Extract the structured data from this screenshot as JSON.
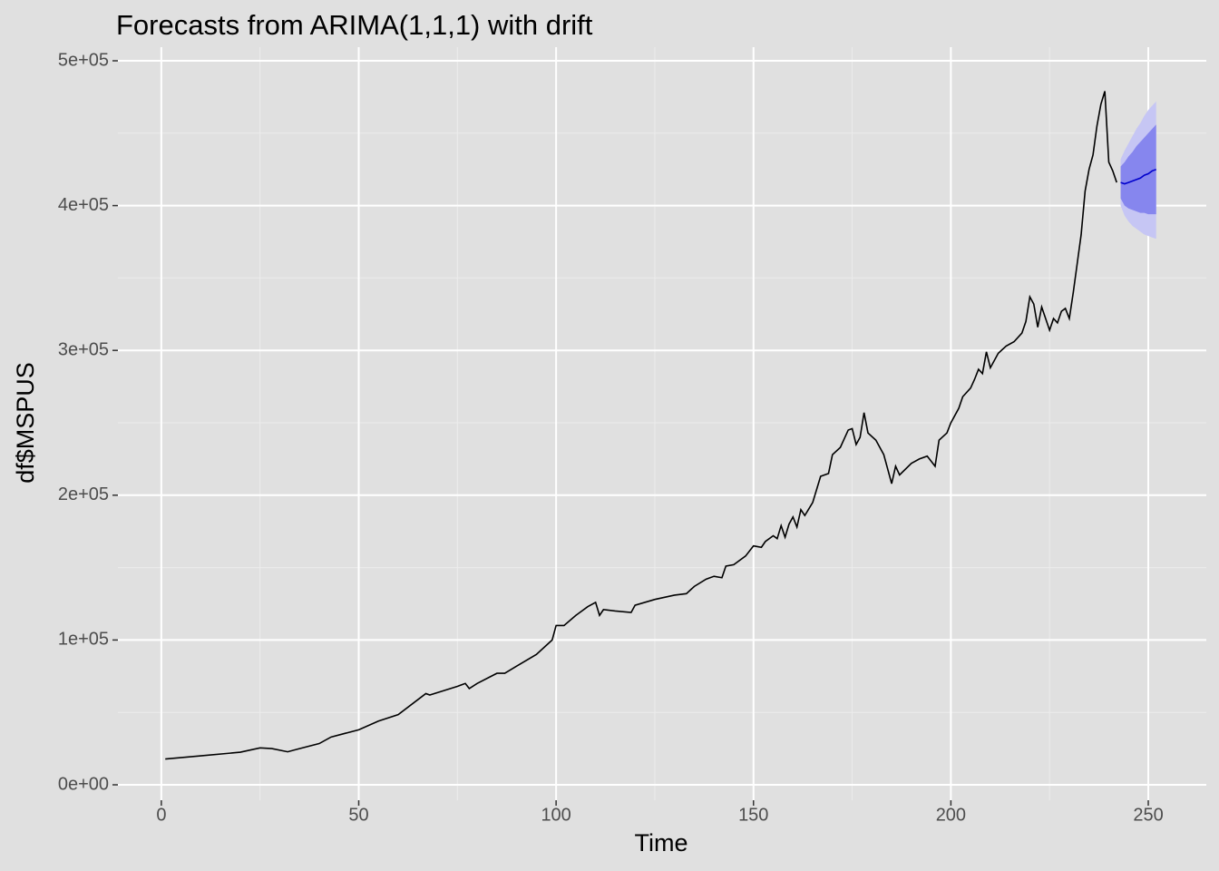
{
  "chart_data": {
    "type": "line",
    "title": "Forecasts from ARIMA(1,1,1) with drift",
    "xlabel": "Time",
    "ylabel": "df$MSPUS",
    "xlim": [
      -11,
      264.7
    ],
    "ylim": [
      -10650,
      509400
    ],
    "xticks": [
      0,
      50,
      100,
      150,
      200,
      250
    ],
    "x_minor_ticks": [
      25,
      75,
      125,
      175,
      225
    ],
    "yticks": [
      {
        "value": 0,
        "label": "0e+00"
      },
      {
        "value": 100000,
        "label": "1e+05"
      },
      {
        "value": 200000,
        "label": "2e+05"
      },
      {
        "value": 300000,
        "label": "3e+05"
      },
      {
        "value": 400000,
        "label": "4e+05"
      },
      {
        "value": 500000,
        "label": "5e+05"
      }
    ],
    "y_minor_ticks": [
      50000,
      150000,
      250000,
      350000,
      450000
    ],
    "grid": true,
    "color": "#000000",
    "x": [
      1,
      10,
      20,
      25,
      28,
      32,
      35,
      40,
      43,
      50,
      55,
      60,
      67,
      68,
      75,
      77,
      78,
      80,
      85,
      87,
      90,
      95,
      99,
      100,
      102,
      105,
      108,
      110,
      111,
      112,
      115,
      119,
      120,
      125,
      130,
      133,
      135,
      138,
      140,
      142,
      143,
      145,
      148,
      150,
      152,
      153,
      155,
      156,
      157,
      158,
      159,
      160,
      161,
      162,
      163,
      165,
      167,
      169,
      170,
      172,
      174,
      175,
      176,
      177,
      178,
      179,
      181,
      183,
      185,
      186,
      187,
      190,
      192,
      194,
      196,
      197,
      199,
      200,
      202,
      203,
      205,
      206,
      207,
      208,
      209,
      210,
      212,
      214,
      216,
      218,
      219,
      220,
      221,
      222,
      223,
      225,
      226,
      227,
      228,
      229,
      230,
      231,
      232,
      233,
      234,
      235,
      236,
      237,
      238,
      239,
      240,
      241,
      242
    ],
    "values": [
      17800,
      20000,
      22500,
      25500,
      25000,
      22800,
      25000,
      28500,
      33000,
      38000,
      44000,
      48500,
      63000,
      62000,
      68000,
      70000,
      66500,
      70000,
      77000,
      77000,
      82000,
      90000,
      100000,
      110000,
      110000,
      117000,
      123000,
      126000,
      117000,
      121000,
      120000,
      119000,
      124000,
      128000,
      131000,
      132000,
      137000,
      142000,
      144000,
      143000,
      151000,
      152000,
      158000,
      165000,
      164000,
      168000,
      172000,
      170000,
      179000,
      171000,
      180000,
      185000,
      178000,
      190000,
      186000,
      195000,
      213000,
      215000,
      228000,
      233000,
      245000,
      246000,
      235000,
      240000,
      257000,
      243000,
      238000,
      228000,
      208000,
      220000,
      214000,
      222000,
      225000,
      227000,
      220000,
      238000,
      243000,
      250000,
      260000,
      268000,
      274000,
      280000,
      287000,
      284000,
      299000,
      288000,
      298000,
      303000,
      306000,
      312000,
      320000,
      337000,
      332000,
      316000,
      330000,
      314000,
      322000,
      319000,
      327000,
      329000,
      322000,
      340000,
      360000,
      380000,
      410000,
      425000,
      435000,
      455000,
      470000,
      479000,
      430000,
      424000,
      416000
    ],
    "forecast": {
      "x": [
        243,
        244,
        245,
        246,
        247,
        248,
        249,
        250,
        251,
        252
      ],
      "mean": [
        416000,
        415000,
        416000,
        417000,
        418000,
        419000,
        421000,
        422000,
        424000,
        425000
      ],
      "lo80": [
        405000,
        400000,
        398000,
        397000,
        396000,
        395000,
        395000,
        394000,
        394000,
        394000
      ],
      "hi80": [
        427000,
        430000,
        434000,
        437000,
        441000,
        444000,
        447000,
        450000,
        453000,
        456000
      ],
      "lo95": [
        400000,
        393000,
        389000,
        386000,
        384000,
        382000,
        380000,
        379000,
        378000,
        377000
      ],
      "hi95": [
        432000,
        438000,
        443000,
        448000,
        453000,
        457000,
        462000,
        466000,
        469000,
        472000
      ],
      "color": "#0000cc",
      "band80_color": "#8686ee",
      "band95_color": "#c6c6f4"
    }
  }
}
